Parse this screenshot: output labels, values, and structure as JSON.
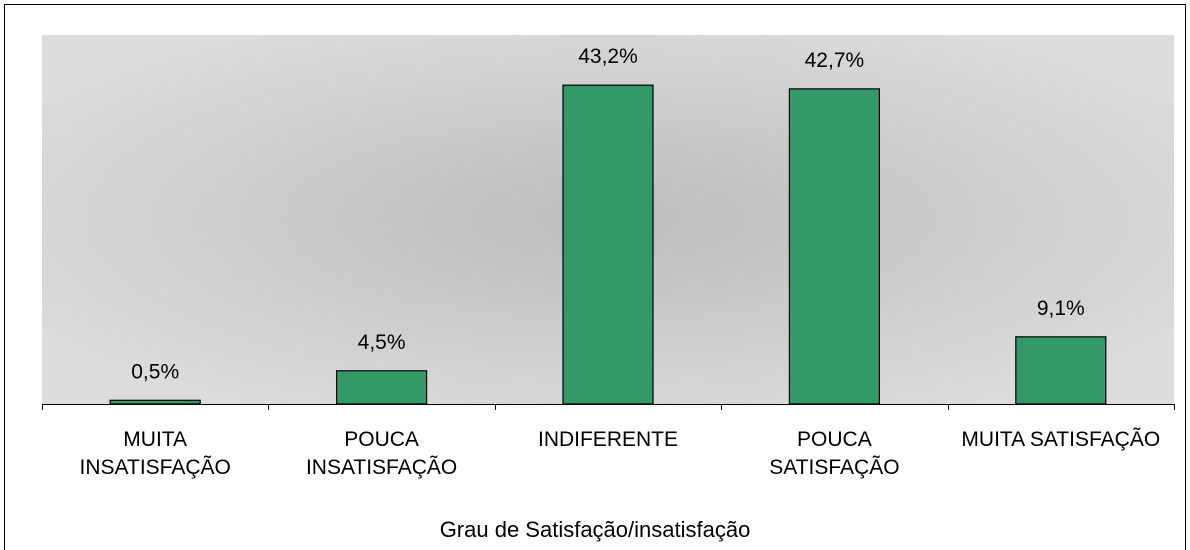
{
  "chart_data": {
    "type": "bar",
    "categories": [
      "MUITA INSATISFAÇÃO",
      "POUCA INSATISFAÇÃO",
      "INDIFERENTE",
      "POUCA SATISFAÇÃO",
      "MUITA SATISFAÇÃO"
    ],
    "values": [
      0.5,
      4.5,
      43.2,
      42.7,
      9.1
    ],
    "value_labels": [
      "0,5%",
      "4,5%",
      "43,2%",
      "42,7%",
      "9,1%"
    ],
    "color": "#339966",
    "x_label": "Grau de Satisfação/insatisfação",
    "ylim": [
      0,
      50
    ]
  }
}
